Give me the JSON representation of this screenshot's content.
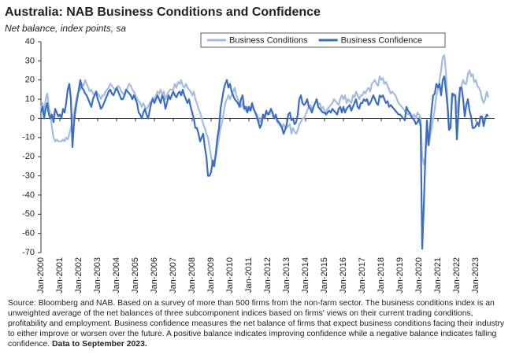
{
  "chart_data": {
    "type": "line",
    "title": "Australia: NAB Business Conditions and Confidence",
    "subtitle": "Net balance, index points, sa",
    "categories": [
      "Jan-2000",
      null,
      null,
      null,
      null,
      null,
      null,
      null,
      null,
      null,
      null,
      null,
      "Jan-2001",
      null,
      null,
      null,
      null,
      null,
      null,
      null,
      null,
      null,
      null,
      null,
      "Jan-2002",
      null,
      null,
      null,
      null,
      null,
      null,
      null,
      null,
      null,
      null,
      null,
      "Jan-2003",
      null,
      null,
      null,
      null,
      null,
      null,
      null,
      null,
      null,
      null,
      null,
      "Jan-2004",
      null,
      null,
      null,
      null,
      null,
      null,
      null,
      null,
      null,
      null,
      null,
      "Jan-2005",
      null,
      null,
      null,
      null,
      null,
      null,
      null,
      null,
      null,
      null,
      null,
      "Jan-2006",
      null,
      null,
      null,
      null,
      null,
      null,
      null,
      null,
      null,
      null,
      null,
      "Jan-2007",
      null,
      null,
      null,
      null,
      null,
      null,
      null,
      null,
      null,
      null,
      null,
      "Jan-2008",
      null,
      null,
      null,
      null,
      null,
      null,
      null,
      null,
      null,
      null,
      null,
      "Jan-2009",
      null,
      null,
      null,
      null,
      null,
      null,
      null,
      null,
      null,
      null,
      null,
      "Jan-2010",
      null,
      null,
      null,
      null,
      null,
      null,
      null,
      null,
      null,
      null,
      null,
      "Jan-2011",
      null,
      null,
      null,
      null,
      null,
      null,
      null,
      null,
      null,
      null,
      null,
      "Jan-2012",
      null,
      null,
      null,
      null,
      null,
      null,
      null,
      null,
      null,
      null,
      null,
      "Jan-2013",
      null,
      null,
      null,
      null,
      null,
      null,
      null,
      null,
      null,
      null,
      null,
      "Jan-2014",
      null,
      null,
      null,
      null,
      null,
      null,
      null,
      null,
      null,
      null,
      null,
      "Jan-2015",
      null,
      null,
      null,
      null,
      null,
      null,
      null,
      null,
      null,
      null,
      null,
      "Jan-2016",
      null,
      null,
      null,
      null,
      null,
      null,
      null,
      null,
      null,
      null,
      null,
      "Jan-2017",
      null,
      null,
      null,
      null,
      null,
      null,
      null,
      null,
      null,
      null,
      null,
      "Jan-2018",
      null,
      null,
      null,
      null,
      null,
      null,
      null,
      null,
      null,
      null,
      null,
      "Jan-2019",
      null,
      null,
      null,
      null,
      null,
      null,
      null,
      null,
      null,
      null,
      null,
      "Jan-2020",
      null,
      null,
      null,
      null,
      null,
      null,
      null,
      null,
      null,
      null,
      null,
      "Jan-2021",
      null,
      null,
      null,
      null,
      null,
      null,
      null,
      null,
      null,
      null,
      null,
      "Jan-2022",
      null,
      null,
      null,
      null,
      null,
      null,
      null,
      null,
      null,
      null,
      null,
      "Jan-2023",
      null,
      null,
      null,
      null,
      null,
      null,
      null,
      null
    ],
    "series": [
      {
        "name": "Business Conditions",
        "color": "#a3bce0",
        "values": [
          5,
          8,
          3,
          10,
          13,
          6,
          2,
          -5,
          -10,
          -12,
          -11,
          -12,
          -12,
          -12,
          -11,
          -12,
          -10,
          -11,
          -8,
          -5,
          0,
          3,
          8,
          12,
          14,
          15,
          18,
          17,
          20,
          18,
          16,
          14,
          15,
          13,
          12,
          14,
          13,
          12,
          10,
          12,
          12,
          14,
          15,
          16,
          18,
          17,
          16,
          15,
          15,
          17,
          16,
          14,
          13,
          12,
          14,
          16,
          18,
          17,
          15,
          14,
          12,
          10,
          9,
          8,
          6,
          8,
          6,
          5,
          6,
          8,
          9,
          11,
          10,
          12,
          14,
          13,
          15,
          12,
          14,
          10,
          12,
          14,
          15,
          15,
          15,
          18,
          16,
          19,
          18,
          20,
          17,
          16,
          18,
          16,
          15,
          14,
          12,
          14,
          10,
          8,
          5,
          3,
          0,
          -3,
          -5,
          -8,
          -10,
          -15,
          -20,
          -25,
          -22,
          -20,
          -15,
          -10,
          -5,
          -2,
          3,
          8,
          10,
          12,
          10,
          12,
          14,
          16,
          12,
          10,
          8,
          6,
          8,
          5,
          4,
          6,
          5,
          4,
          6,
          5,
          3,
          2,
          0,
          -2,
          0,
          2,
          1,
          3,
          3,
          2,
          4,
          2,
          0,
          2,
          -2,
          -3,
          -4,
          -5,
          -3,
          -5,
          -5,
          -4,
          -3,
          -8,
          -5,
          -7,
          -8,
          -6,
          -3,
          -2,
          0,
          0,
          2,
          4,
          6,
          7,
          5,
          6,
          8,
          10,
          7,
          8,
          5,
          6,
          4,
          3,
          5,
          6,
          7,
          8,
          10,
          9,
          8,
          7,
          10,
          12,
          10,
          12,
          8,
          10,
          9,
          8,
          12,
          11,
          14,
          12,
          10,
          12,
          12,
          14,
          13,
          15,
          16,
          14,
          18,
          19,
          20,
          18,
          17,
          22,
          20,
          21,
          18,
          19,
          17,
          15,
          13,
          14,
          13,
          12,
          10,
          8,
          7,
          6,
          5,
          4,
          3,
          2,
          3,
          2,
          1,
          2,
          0,
          3,
          2,
          0,
          -20,
          -24,
          -20,
          -8,
          -14,
          -10,
          -5,
          0,
          5,
          12,
          15,
          20,
          25,
          32,
          33,
          25,
          10,
          -5,
          -4,
          10,
          13,
          12,
          3,
          10,
          15,
          17,
          20,
          18,
          18,
          23,
          25,
          22,
          23,
          19,
          20,
          17,
          16,
          14,
          10,
          8,
          10,
          14,
          11
        ]
      },
      {
        "name": "Business Confidence",
        "color": "#3d6dbd",
        "values": [
          3,
          6,
          0,
          5,
          8,
          2,
          0,
          2,
          -2,
          5,
          3,
          1,
          2,
          0,
          5,
          3,
          8,
          15,
          18,
          10,
          -15,
          -2,
          5,
          10,
          15,
          20,
          16,
          15,
          13,
          12,
          10,
          8,
          6,
          10,
          12,
          14,
          10,
          8,
          5,
          6,
          8,
          10,
          12,
          14,
          15,
          13,
          12,
          14,
          16,
          14,
          12,
          10,
          10,
          12,
          15,
          14,
          13,
          12,
          10,
          12,
          10,
          8,
          3,
          2,
          0,
          3,
          5,
          2,
          0,
          4,
          8,
          10,
          8,
          10,
          12,
          10,
          8,
          12,
          10,
          5,
          8,
          12,
          10,
          12,
          14,
          12,
          11,
          13,
          14,
          12,
          15,
          12,
          10,
          8,
          10,
          6,
          3,
          0,
          -5,
          -5,
          -8,
          -12,
          -10,
          -8,
          -15,
          -20,
          -30,
          -30,
          -28,
          -22,
          -25,
          -18,
          -10,
          -5,
          5,
          10,
          15,
          18,
          20,
          16,
          18,
          14,
          12,
          10,
          9,
          8,
          6,
          10,
          12,
          5,
          6,
          3,
          6,
          4,
          8,
          5,
          3,
          1,
          -2,
          -5,
          -3,
          2,
          0,
          4,
          2,
          3,
          5,
          3,
          0,
          2,
          -1,
          -2,
          -3,
          -5,
          -8,
          -6,
          -3,
          2,
          3,
          -1,
          0,
          -3,
          -2,
          2,
          10,
          12,
          8,
          7,
          8,
          10,
          6,
          5,
          3,
          6,
          8,
          10,
          6,
          5,
          4,
          3,
          3,
          2,
          3,
          4,
          3,
          5,
          4,
          3,
          2,
          5,
          6,
          3,
          6,
          3,
          5,
          6,
          7,
          4,
          6,
          8,
          10,
          6,
          5,
          8,
          8,
          10,
          9,
          10,
          7,
          8,
          10,
          12,
          10,
          8,
          7,
          12,
          11,
          12,
          10,
          8,
          9,
          6,
          7,
          6,
          5,
          4,
          3,
          2,
          2,
          1,
          0,
          -1,
          6,
          4,
          3,
          1,
          0,
          -1,
          -3,
          -2,
          0,
          -4,
          -68,
          -46,
          -20,
          -1,
          -14,
          -5,
          5,
          12,
          13,
          18,
          16,
          18,
          12,
          20,
          22,
          15,
          7,
          -6,
          -5,
          13,
          12,
          12,
          -11,
          3,
          16,
          16,
          10,
          1,
          7,
          10,
          4,
          1,
          -5,
          -5,
          -4,
          -2,
          -4,
          1,
          1,
          -4,
          0,
          2,
          1
        ]
      }
    ],
    "ylim": [
      -70,
      40
    ],
    "yticks": [
      -70,
      -60,
      -50,
      -40,
      -30,
      -20,
      -10,
      0,
      10,
      20,
      30,
      40
    ],
    "grid": false,
    "legend": "top",
    "note": "Source: Bloomberg and NAB. Based on a survey of more than 500 firms from the non-farm sector.  The business conditions index is an unweighted average of the net balances of three subcomponent indices based on firms' views on their current trading conditions, profitability and employment.  Business confidence measures the net balance of firms that expect business conditions facing their industry to either improve or worsen over the future.  A positive balance indicates improving confidence while a negative balance indicates falling confidence.",
    "note_bold": "Data to September 2023."
  }
}
